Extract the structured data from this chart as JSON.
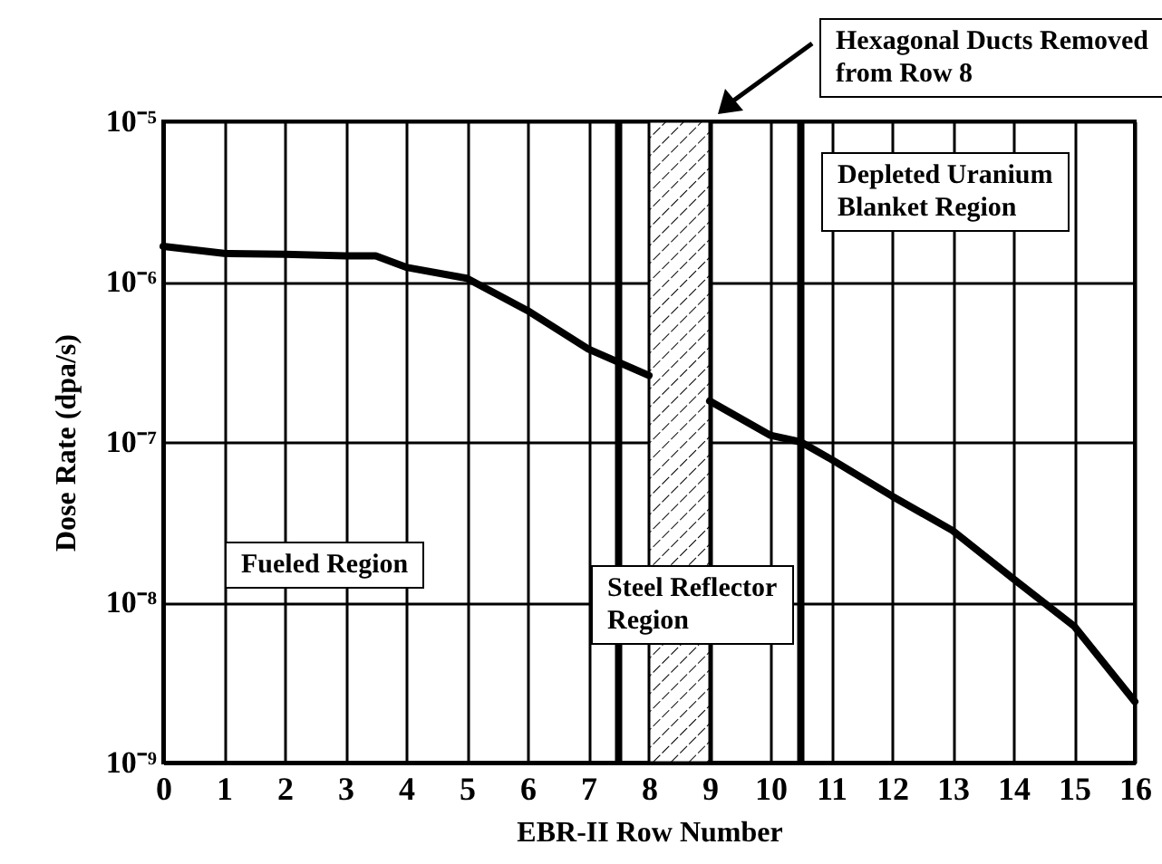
{
  "chart_data": {
    "type": "line",
    "xlabel": "EBR-II Row Number",
    "ylabel": "Dose Rate (dpa/s)",
    "annotations": [
      "Hexagonal Ducts Removed\nfrom Row 8",
      "Depleted Uranium\nBlanket Region",
      "Fueled Region",
      "Steel Reflector\nRegion"
    ],
    "series": [
      {
        "color": "#000000",
        "x": [
          0,
          1,
          2,
          3,
          3.5,
          4,
          5,
          6,
          7,
          8,
          8.5,
          9,
          10,
          10.5,
          11,
          12,
          13,
          14,
          15,
          16
        ],
        "values": [
          1.66e-06,
          1.5e-06,
          1.48e-06,
          1.45e-06,
          1.45e-06,
          1.23e-06,
          1.05e-06,
          6.6e-07,
          3.8e-07,
          2.6e-07,
          null,
          1.8e-07,
          1.1e-07,
          1e-07,
          7.8e-08,
          4.6e-08,
          2.8e-08,
          1.4e-08,
          7.1e-09,
          2.4e-09
        ]
      }
    ],
    "xlim": [
      0,
      16
    ],
    "xticks": [
      0,
      1,
      2,
      3,
      4,
      5,
      6,
      7,
      8,
      9,
      10,
      11,
      12,
      13,
      14,
      15,
      16
    ],
    "log": true,
    "ylim": [
      1e-09,
      1e-05
    ],
    "yticks": [
      {
        "value": 1e-09,
        "label": "10⁻⁹"
      },
      {
        "value": 1e-08,
        "label": "10⁻⁸"
      },
      {
        "value": 1e-07,
        "label": "10⁻⁷"
      },
      {
        "value": 1e-06,
        "label": "10⁻⁶"
      },
      {
        "value": 1e-05,
        "label": "10⁻⁵"
      }
    ],
    "ref_lines": [
      {
        "axis": "x",
        "value": 7.5
      },
      {
        "axis": "x",
        "value": 10.5
      }
    ],
    "bands": [
      {
        "axis": "x",
        "from": 8,
        "to": 9
      }
    ],
    "grid": true,
    "line_style": "solid",
    "marker": "none"
  }
}
